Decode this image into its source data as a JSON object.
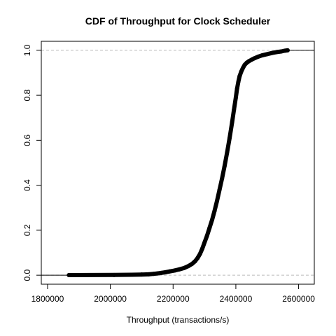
{
  "chart_data": {
    "type": "scatter",
    "title": "CDF of Throughput for Clock Scheduler",
    "xlabel": "Throughput (transactions/s)",
    "ylabel": "",
    "xlim": [
      1780000,
      2650000
    ],
    "ylim": [
      -0.04,
      1.04
    ],
    "x_ticks": [
      1800000,
      2000000,
      2200000,
      2400000,
      2600000
    ],
    "x_tick_labels": [
      "1800000",
      "2000000",
      "2200000",
      "2400000",
      "2600000"
    ],
    "y_ticks": [
      0.0,
      0.2,
      0.4,
      0.6,
      0.8,
      1.0
    ],
    "y_tick_labels": [
      "0.0",
      "0.2",
      "0.4",
      "0.6",
      "0.8",
      "1.0"
    ],
    "reference_lines_y": [
      0,
      1
    ],
    "grid": false,
    "colors": {
      "points": "#000000",
      "reference_line": "#bbbbbb",
      "axis": "#000000"
    },
    "series": [
      {
        "x": [
          1868000,
          2012000,
          2068000,
          2100000,
          2122000,
          2138000,
          2150000,
          2162000,
          2175000,
          2190000,
          2205000,
          2220000,
          2235000,
          2248000,
          2260000,
          2270000,
          2278000,
          2286000,
          2293000,
          2300000,
          2308000,
          2316000,
          2324000,
          2332000,
          2340000,
          2348000,
          2356000,
          2364000,
          2372000,
          2380000,
          2388000,
          2394000,
          2400000,
          2404000,
          2408000,
          2412000,
          2417000,
          2422000,
          2428000,
          2435000,
          2442000,
          2450000,
          2460000,
          2472000,
          2485000,
          2500000,
          2515000,
          2530000,
          2545000,
          2555000,
          2565000
        ],
        "y": [
          0.0005,
          0.001,
          0.002,
          0.003,
          0.004,
          0.006,
          0.008,
          0.01,
          0.013,
          0.017,
          0.021,
          0.026,
          0.032,
          0.04,
          0.05,
          0.062,
          0.076,
          0.095,
          0.118,
          0.145,
          0.175,
          0.21,
          0.245,
          0.285,
          0.33,
          0.38,
          0.43,
          0.485,
          0.545,
          0.61,
          0.68,
          0.735,
          0.79,
          0.83,
          0.86,
          0.885,
          0.905,
          0.92,
          0.935,
          0.945,
          0.952,
          0.958,
          0.965,
          0.972,
          0.978,
          0.983,
          0.988,
          0.992,
          0.995,
          0.998,
          1.0
        ]
      }
    ]
  }
}
